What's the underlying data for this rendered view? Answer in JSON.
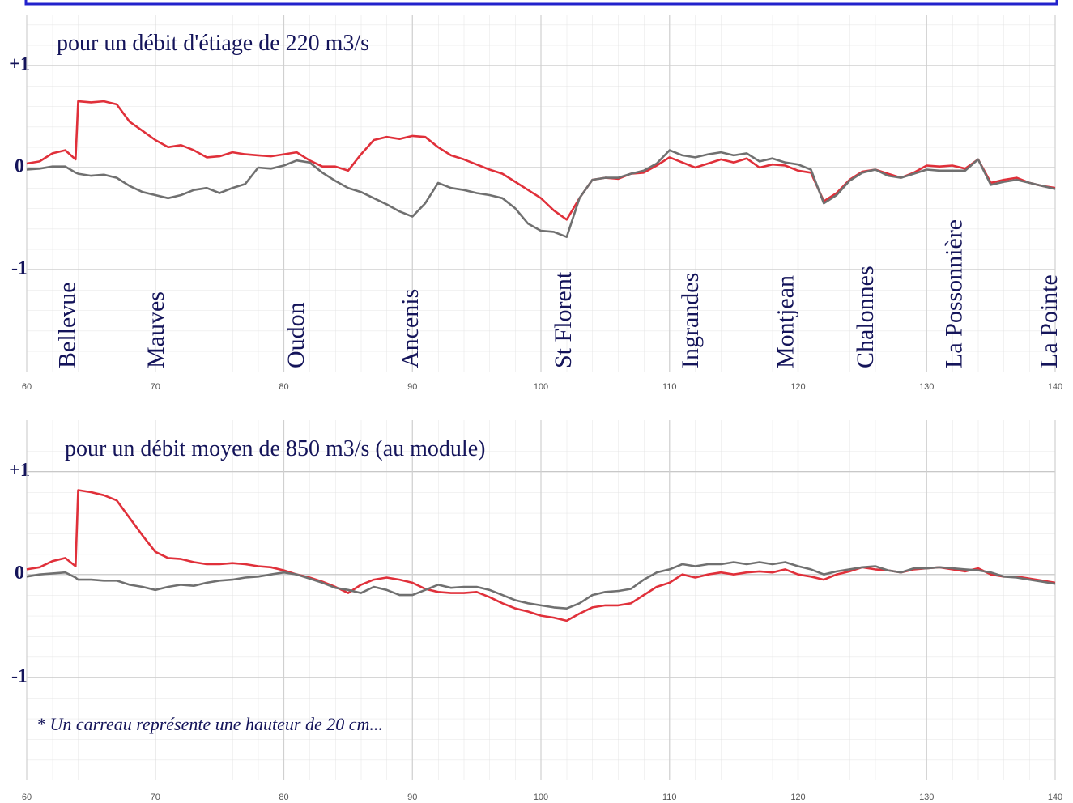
{
  "chart_data": [
    {
      "type": "line",
      "title": "pour un débit d'étiage de 220 m3/s",
      "x": [
        60,
        61,
        62,
        63,
        63.8,
        64,
        65,
        66,
        67,
        68,
        69,
        70,
        71,
        72,
        73,
        74,
        75,
        76,
        77,
        78,
        79,
        80,
        81,
        82,
        83,
        84,
        85,
        86,
        87,
        88,
        89,
        90,
        91,
        92,
        93,
        94,
        95,
        96,
        97,
        98,
        99,
        100,
        101,
        102,
        103,
        104,
        105,
        106,
        107,
        108,
        109,
        110,
        111,
        112,
        113,
        114,
        115,
        116,
        117,
        118,
        119,
        120,
        121,
        122,
        123,
        124,
        125,
        126,
        127,
        128,
        129,
        130,
        131,
        132,
        133,
        134,
        135,
        136,
        137,
        138,
        139,
        140
      ],
      "series": [
        {
          "color": "#e0303a",
          "values": [
            0.04,
            0.06,
            0.14,
            0.17,
            0.08,
            0.65,
            0.64,
            0.65,
            0.62,
            0.45,
            0.36,
            0.27,
            0.2,
            0.22,
            0.17,
            0.1,
            0.11,
            0.15,
            0.13,
            0.12,
            0.11,
            0.13,
            0.15,
            0.07,
            0.01,
            0.01,
            -0.03,
            0.13,
            0.27,
            0.3,
            0.28,
            0.31,
            0.3,
            0.2,
            0.12,
            0.08,
            0.03,
            -0.02,
            -0.06,
            -0.14,
            -0.22,
            -0.3,
            -0.42,
            -0.51,
            -0.3,
            -0.12,
            -0.1,
            -0.11,
            -0.06,
            -0.05,
            0.02,
            0.1,
            0.05,
            0.0,
            0.04,
            0.08,
            0.05,
            0.09,
            0.0,
            0.03,
            0.02,
            -0.03,
            -0.05,
            -0.33,
            -0.25,
            -0.12,
            -0.04,
            -0.02,
            -0.06,
            -0.1,
            -0.05,
            0.02,
            0.01,
            0.02,
            -0.01,
            0.08,
            -0.15,
            -0.12,
            -0.1,
            -0.15,
            -0.18,
            -0.2
          ]
        },
        {
          "color": "#707070",
          "values": [
            -0.02,
            -0.01,
            0.01,
            0.01,
            -0.05,
            -0.06,
            -0.08,
            -0.07,
            -0.1,
            -0.18,
            -0.24,
            -0.27,
            -0.3,
            -0.27,
            -0.22,
            -0.2,
            -0.25,
            -0.2,
            -0.16,
            0.0,
            -0.01,
            0.02,
            0.07,
            0.05,
            -0.05,
            -0.13,
            -0.2,
            -0.24,
            -0.3,
            -0.36,
            -0.43,
            -0.48,
            -0.35,
            -0.15,
            -0.2,
            -0.22,
            -0.25,
            -0.27,
            -0.3,
            -0.4,
            -0.55,
            -0.62,
            -0.63,
            -0.68,
            -0.3,
            -0.12,
            -0.1,
            -0.1,
            -0.06,
            -0.03,
            0.04,
            0.17,
            0.12,
            0.1,
            0.13,
            0.15,
            0.12,
            0.14,
            0.06,
            0.09,
            0.05,
            0.03,
            -0.02,
            -0.35,
            -0.27,
            -0.13,
            -0.05,
            -0.02,
            -0.08,
            -0.1,
            -0.06,
            -0.02,
            -0.03,
            -0.03,
            -0.03,
            0.08,
            -0.17,
            -0.14,
            -0.12,
            -0.15,
            -0.18,
            -0.21
          ]
        }
      ],
      "places": [
        {
          "label": "Bellevue",
          "x": 63.3
        },
        {
          "label": "Mauves",
          "x": 70.2
        },
        {
          "label": "Oudon",
          "x": 81.1
        },
        {
          "label": "Ancenis",
          "x": 90
        },
        {
          "label": "St Florent",
          "x": 101.9
        },
        {
          "label": "Ingrandes",
          "x": 111.8
        },
        {
          "label": "Montjean",
          "x": 119.2
        },
        {
          "label": "Chalonnes",
          "x": 125.4
        },
        {
          "label": "La Possonnière",
          "x": 132.3
        },
        {
          "label": "La Pointe",
          "x": 139.7
        }
      ],
      "xlim": [
        60,
        140
      ],
      "xticks": [
        60,
        70,
        80,
        90,
        100,
        110,
        120,
        130,
        140
      ],
      "ylim": [
        -2,
        1.5
      ],
      "yticks": [
        {
          "value": 1,
          "label": "+1"
        },
        0,
        -1
      ],
      "grid": true
    },
    {
      "type": "line",
      "title": "pour un débit moyen de 850 m3/s (au module)",
      "annotation": "* Un carreau représente une hauteur de 20 cm...",
      "x": [
        60,
        61,
        62,
        63,
        63.8,
        64,
        65,
        66,
        67,
        68,
        69,
        70,
        71,
        72,
        73,
        74,
        75,
        76,
        77,
        78,
        79,
        80,
        81,
        82,
        83,
        84,
        85,
        86,
        87,
        88,
        89,
        90,
        91,
        92,
        93,
        94,
        95,
        96,
        97,
        98,
        99,
        100,
        101,
        102,
        103,
        104,
        105,
        106,
        107,
        108,
        109,
        110,
        111,
        112,
        113,
        114,
        115,
        116,
        117,
        118,
        119,
        120,
        121,
        122,
        123,
        124,
        125,
        126,
        127,
        128,
        129,
        130,
        131,
        132,
        133,
        134,
        135,
        136,
        137,
        138,
        139,
        140
      ],
      "series": [
        {
          "color": "#e0303a",
          "values": [
            0.05,
            0.07,
            0.13,
            0.16,
            0.08,
            0.82,
            0.8,
            0.77,
            0.72,
            0.55,
            0.38,
            0.22,
            0.16,
            0.15,
            0.12,
            0.1,
            0.1,
            0.11,
            0.1,
            0.08,
            0.07,
            0.04,
            0.0,
            -0.03,
            -0.07,
            -0.12,
            -0.18,
            -0.1,
            -0.05,
            -0.03,
            -0.05,
            -0.08,
            -0.14,
            -0.17,
            -0.18,
            -0.18,
            -0.17,
            -0.22,
            -0.28,
            -0.33,
            -0.36,
            -0.4,
            -0.42,
            -0.45,
            -0.38,
            -0.32,
            -0.3,
            -0.3,
            -0.28,
            -0.2,
            -0.12,
            -0.08,
            0.0,
            -0.03,
            0.0,
            0.02,
            0.0,
            0.02,
            0.03,
            0.02,
            0.05,
            0.0,
            -0.02,
            -0.05,
            0.0,
            0.03,
            0.07,
            0.05,
            0.04,
            0.02,
            0.05,
            0.06,
            0.07,
            0.05,
            0.03,
            0.06,
            0.0,
            -0.02,
            -0.02,
            -0.04,
            -0.06,
            -0.08
          ]
        },
        {
          "color": "#707070",
          "values": [
            -0.02,
            0.0,
            0.01,
            0.02,
            -0.03,
            -0.05,
            -0.05,
            -0.06,
            -0.06,
            -0.1,
            -0.12,
            -0.15,
            -0.12,
            -0.1,
            -0.11,
            -0.08,
            -0.06,
            -0.05,
            -0.03,
            -0.02,
            0.0,
            0.02,
            0.0,
            -0.04,
            -0.08,
            -0.13,
            -0.15,
            -0.18,
            -0.12,
            -0.15,
            -0.2,
            -0.2,
            -0.15,
            -0.1,
            -0.13,
            -0.12,
            -0.12,
            -0.15,
            -0.2,
            -0.25,
            -0.28,
            -0.3,
            -0.32,
            -0.33,
            -0.28,
            -0.2,
            -0.17,
            -0.16,
            -0.14,
            -0.05,
            0.02,
            0.05,
            0.1,
            0.08,
            0.1,
            0.1,
            0.12,
            0.1,
            0.12,
            0.1,
            0.12,
            0.08,
            0.05,
            0.0,
            0.03,
            0.05,
            0.07,
            0.08,
            0.04,
            0.02,
            0.06,
            0.06,
            0.07,
            0.06,
            0.05,
            0.04,
            0.02,
            -0.02,
            -0.03,
            -0.05,
            -0.07,
            -0.09
          ]
        }
      ],
      "xlim": [
        60,
        140
      ],
      "xticks": [
        60,
        70,
        80,
        90,
        100,
        110,
        120,
        130,
        140
      ],
      "ylim": [
        -2,
        1.5
      ],
      "yticks": [
        {
          "value": 1,
          "label": "+1"
        },
        0,
        -1
      ],
      "grid": true
    }
  ]
}
